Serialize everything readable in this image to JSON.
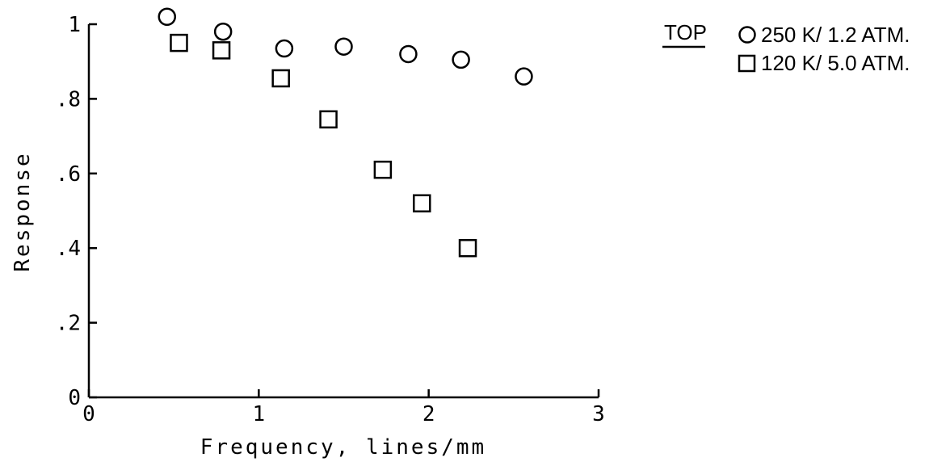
{
  "chart_data": {
    "type": "scatter",
    "xlabel": "Frequency, lines/mm",
    "ylabel": "Response",
    "xlim": [
      0,
      3
    ],
    "ylim": [
      0,
      1
    ],
    "x_ticks": [
      {
        "value": 0,
        "label": "0"
      },
      {
        "value": 1,
        "label": "1"
      },
      {
        "value": 2,
        "label": "2"
      },
      {
        "value": 3,
        "label": "3"
      }
    ],
    "y_ticks": [
      {
        "value": 0,
        "label": "0"
      },
      {
        "value": 0.2,
        "label": ".2"
      },
      {
        "value": 0.4,
        "label": ".4"
      },
      {
        "value": 0.6,
        "label": ".6"
      },
      {
        "value": 0.8,
        "label": ".8"
      },
      {
        "value": 1,
        "label": "1"
      }
    ],
    "legend": {
      "placement": "top-right",
      "title": "TOP"
    },
    "series": [
      {
        "name": "250 K/ 1.2 ATM.",
        "marker": "circle",
        "points": [
          {
            "x": 0.46,
            "y": 1.02
          },
          {
            "x": 0.79,
            "y": 0.98
          },
          {
            "x": 1.15,
            "y": 0.935
          },
          {
            "x": 1.5,
            "y": 0.94
          },
          {
            "x": 1.88,
            "y": 0.92
          },
          {
            "x": 2.19,
            "y": 0.905
          },
          {
            "x": 2.56,
            "y": 0.86
          }
        ]
      },
      {
        "name": "120 K/ 5.0 ATM.",
        "marker": "square",
        "points": [
          {
            "x": 0.53,
            "y": 0.95
          },
          {
            "x": 0.78,
            "y": 0.93
          },
          {
            "x": 1.13,
            "y": 0.855
          },
          {
            "x": 1.41,
            "y": 0.745
          },
          {
            "x": 1.73,
            "y": 0.61
          },
          {
            "x": 1.96,
            "y": 0.52
          },
          {
            "x": 2.23,
            "y": 0.4
          }
        ]
      }
    ]
  }
}
